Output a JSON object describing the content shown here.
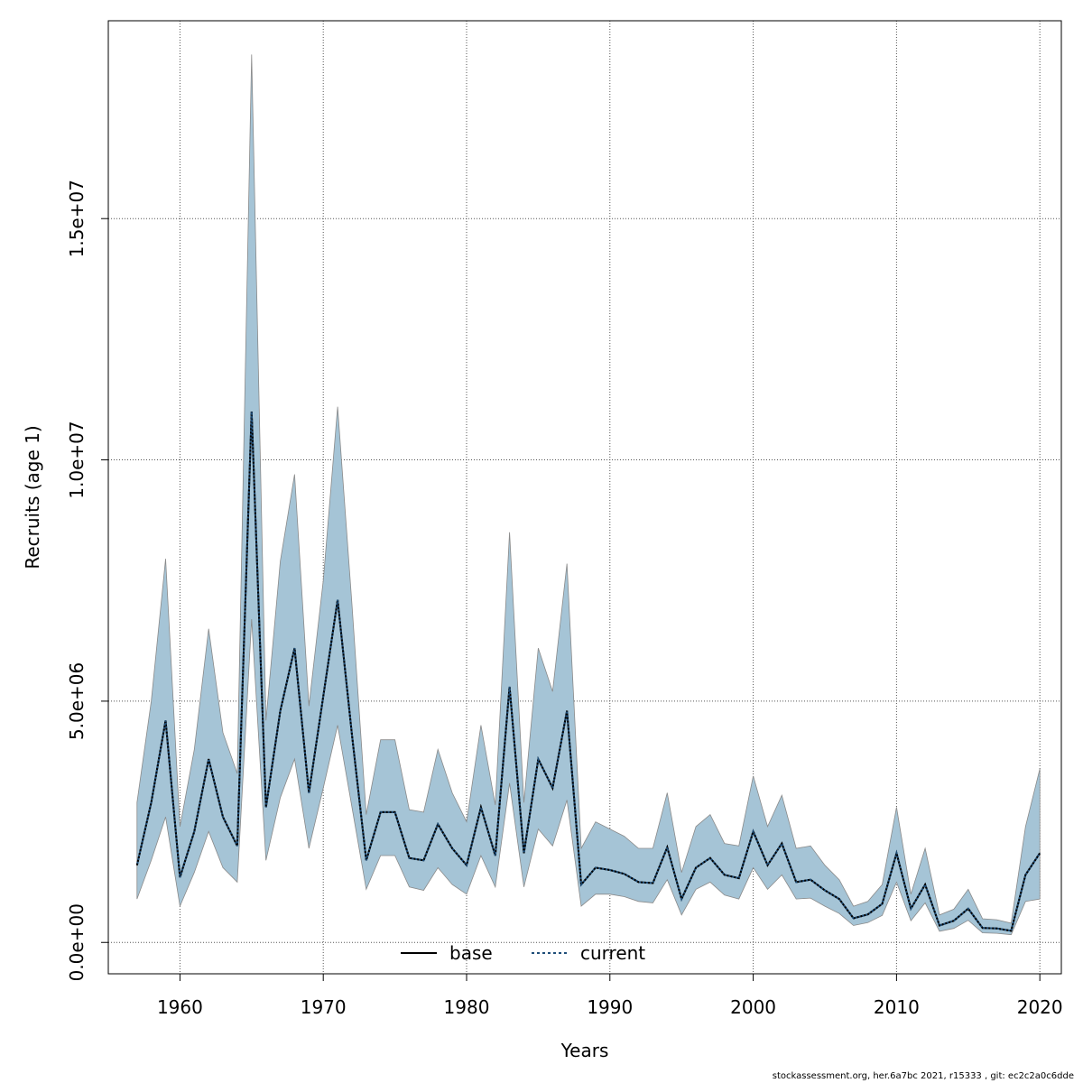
{
  "chart_data": {
    "type": "line",
    "title": "",
    "xlabel": "Years",
    "ylabel": "Recruits (age 1)",
    "xlim": [
      1955,
      2021.5
    ],
    "ylim": [
      -650000,
      19100000
    ],
    "x_ticks": [
      1960,
      1970,
      1980,
      1990,
      2000,
      2010,
      2020
    ],
    "y_ticks": [
      0,
      5000000,
      10000000,
      15000000
    ],
    "y_tick_labels": [
      "0.0e+00",
      "5.0e+06",
      "1.0e+07",
      "1.5e+07"
    ],
    "grid": true,
    "legend_position": "bottom-center",
    "colors": {
      "band": "#a5c4d6",
      "band_edge": "#8a8a8a",
      "current": "#1f4e79",
      "base": "#000000",
      "grid": "#555555"
    },
    "x": [
      1957,
      1958,
      1959,
      1960,
      1961,
      1962,
      1963,
      1964,
      1965,
      1966,
      1967,
      1968,
      1969,
      1970,
      1971,
      1972,
      1973,
      1974,
      1975,
      1976,
      1977,
      1978,
      1979,
      1980,
      1981,
      1982,
      1983,
      1984,
      1985,
      1986,
      1987,
      1988,
      1989,
      1990,
      1991,
      1992,
      1993,
      1994,
      1995,
      1996,
      1997,
      1998,
      1999,
      2000,
      2001,
      2002,
      2003,
      2004,
      2005,
      2006,
      2007,
      2008,
      2009,
      2010,
      2011,
      2012,
      2013,
      2014,
      2015,
      2016,
      2017,
      2018,
      2019,
      2020
    ],
    "series": [
      {
        "name": "base",
        "line": "solid",
        "values": [
          1600000,
          2900000,
          4600000,
          1350000,
          2300000,
          3800000,
          2600000,
          2000000,
          11000000,
          2800000,
          4800000,
          6100000,
          3100000,
          5100000,
          7100000,
          4300000,
          1700000,
          2700000,
          2700000,
          1750000,
          1700000,
          2450000,
          1950000,
          1600000,
          2800000,
          1800000,
          5300000,
          1850000,
          3800000,
          3200000,
          4800000,
          1200000,
          1550000,
          1500000,
          1420000,
          1250000,
          1230000,
          1970000,
          900000,
          1550000,
          1750000,
          1400000,
          1330000,
          2300000,
          1600000,
          2050000,
          1250000,
          1300000,
          1080000,
          900000,
          500000,
          580000,
          800000,
          1850000,
          700000,
          1200000,
          350000,
          450000,
          700000,
          300000,
          290000,
          240000,
          1400000,
          1850000
        ]
      },
      {
        "name": "current",
        "line": "dotted",
        "values": [
          1600000,
          2900000,
          4600000,
          1350000,
          2300000,
          3800000,
          2600000,
          2000000,
          11000000,
          2800000,
          4800000,
          6100000,
          3100000,
          5100000,
          7100000,
          4300000,
          1700000,
          2700000,
          2700000,
          1750000,
          1700000,
          2450000,
          1950000,
          1600000,
          2800000,
          1800000,
          5300000,
          1850000,
          3800000,
          3200000,
          4800000,
          1200000,
          1550000,
          1500000,
          1420000,
          1250000,
          1230000,
          1970000,
          900000,
          1550000,
          1750000,
          1400000,
          1330000,
          2300000,
          1600000,
          2050000,
          1250000,
          1300000,
          1080000,
          900000,
          500000,
          580000,
          800000,
          1850000,
          700000,
          1200000,
          350000,
          450000,
          700000,
          300000,
          290000,
          240000,
          1400000,
          1850000
        ]
      }
    ],
    "band": {
      "name": "confidence interval",
      "lower": [
        900000,
        1700000,
        2600000,
        750000,
        1450000,
        2300000,
        1550000,
        1250000,
        6700000,
        1700000,
        3000000,
        3800000,
        1950000,
        3200000,
        4500000,
        2800000,
        1100000,
        1800000,
        1800000,
        1150000,
        1080000,
        1550000,
        1200000,
        1000000,
        1800000,
        1150000,
        3300000,
        1150000,
        2350000,
        2000000,
        2950000,
        750000,
        1000000,
        1000000,
        950000,
        850000,
        820000,
        1300000,
        570000,
        1100000,
        1250000,
        980000,
        900000,
        1550000,
        1100000,
        1400000,
        900000,
        920000,
        750000,
        600000,
        350000,
        410000,
        560000,
        1250000,
        450000,
        820000,
        230000,
        290000,
        460000,
        200000,
        190000,
        160000,
        850000,
        900000
      ],
      "upper": [
        2900000,
        5000000,
        7950000,
        2400000,
        4000000,
        6500000,
        4350000,
        3500000,
        18400000,
        4600000,
        7900000,
        9700000,
        4900000,
        7500000,
        11100000,
        7000000,
        2650000,
        4200000,
        4200000,
        2750000,
        2700000,
        4000000,
        3100000,
        2500000,
        4500000,
        2850000,
        8500000,
        2900000,
        6100000,
        5200000,
        7850000,
        1950000,
        2500000,
        2350000,
        2200000,
        1950000,
        1950000,
        3100000,
        1450000,
        2400000,
        2650000,
        2050000,
        2000000,
        3450000,
        2400000,
        3050000,
        1950000,
        2000000,
        1600000,
        1300000,
        750000,
        850000,
        1200000,
        2800000,
        1000000,
        1950000,
        570000,
        690000,
        1100000,
        490000,
        470000,
        400000,
        2400000,
        3600000
      ]
    }
  },
  "footer": "stockassessment.org, her.6a7bc  2021, r15333 , git: ec2c2a0c6dde"
}
